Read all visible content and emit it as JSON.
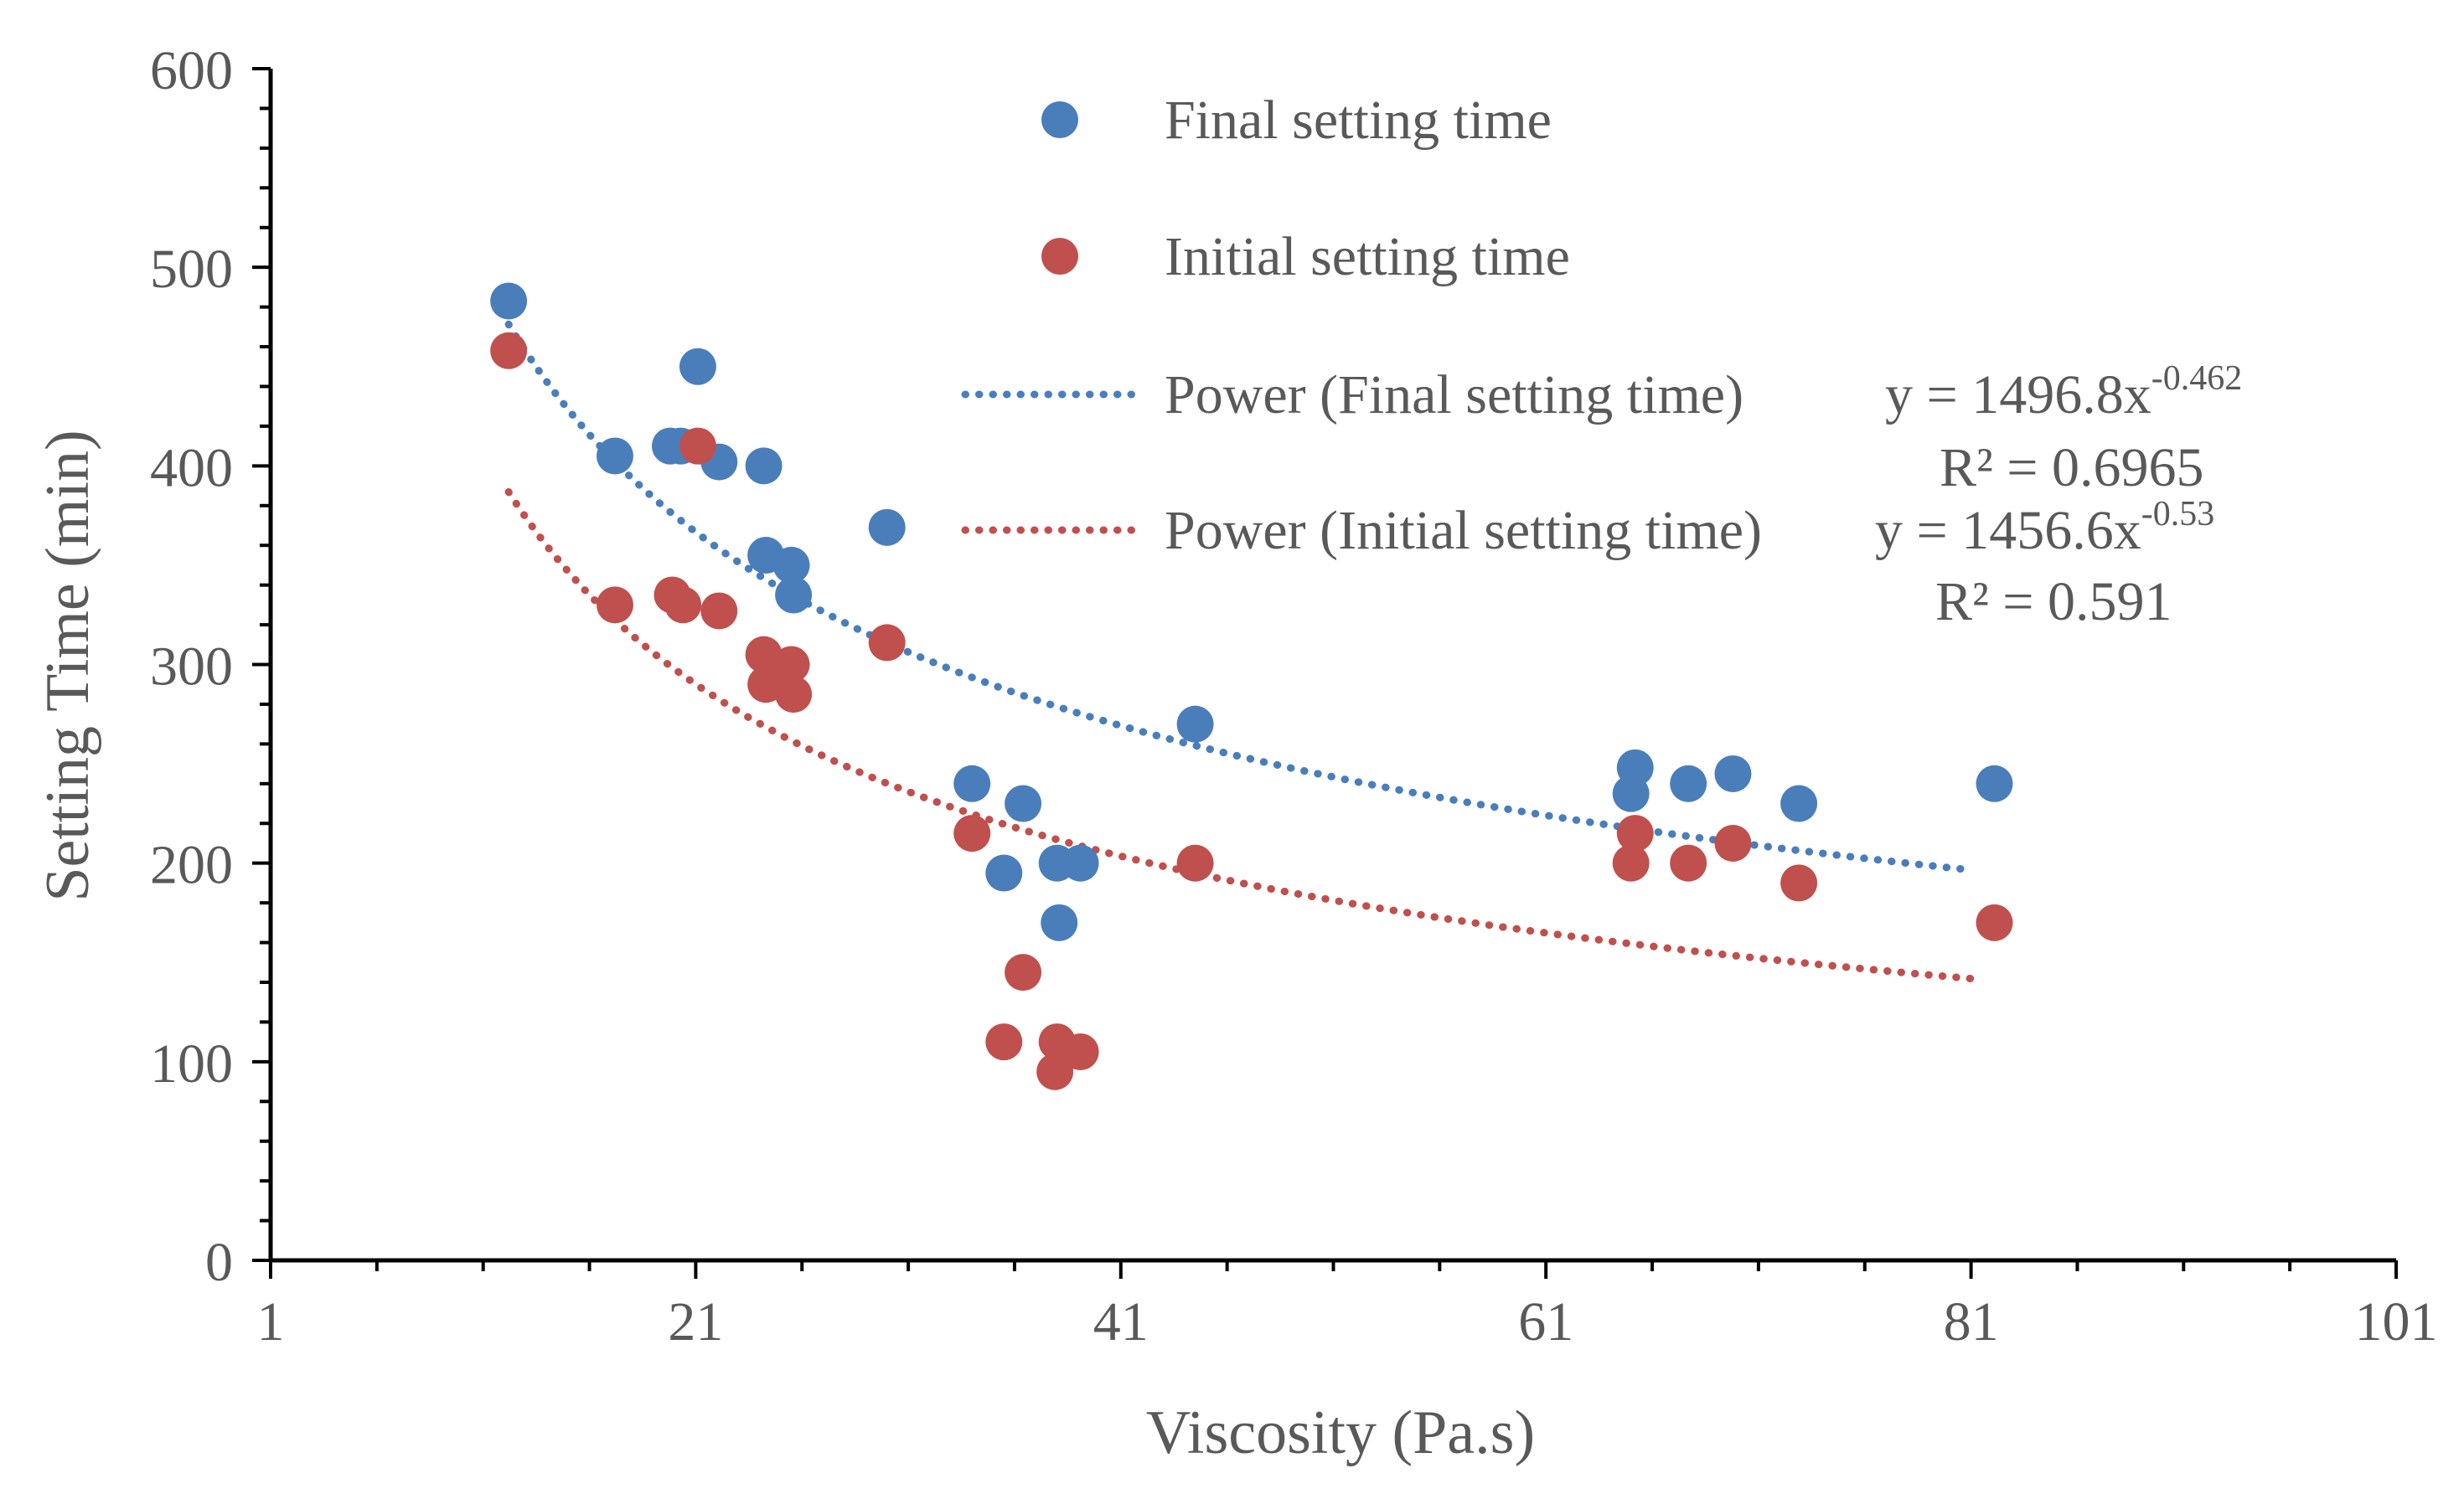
{
  "chart_data": {
    "type": "scatter",
    "title": "",
    "xlabel": "Viscosity (Pa.s)",
    "ylabel": "Setting Time (min)",
    "xlim": [
      1,
      101
    ],
    "ylim": [
      0,
      600
    ],
    "x_ticks": [
      1,
      21,
      41,
      61,
      81,
      101
    ],
    "y_ticks": [
      0,
      100,
      200,
      300,
      400,
      500,
      600
    ],
    "grid": false,
    "legend_position": "top-center",
    "series": [
      {
        "name": "Final setting time",
        "color": "#4a7ebb",
        "points": [
          [
            12.2,
            483
          ],
          [
            17.2,
            405
          ],
          [
            19.8,
            410
          ],
          [
            20.3,
            410
          ],
          [
            21.1,
            450
          ],
          [
            22.1,
            402
          ],
          [
            24.2,
            400
          ],
          [
            24.3,
            355
          ],
          [
            25.5,
            350
          ],
          [
            25.6,
            335
          ],
          [
            30.0,
            369
          ],
          [
            34.0,
            240
          ],
          [
            35.5,
            195
          ],
          [
            36.4,
            230
          ],
          [
            38.0,
            200
          ],
          [
            38.1,
            170
          ],
          [
            39.1,
            200
          ],
          [
            44.5,
            270
          ],
          [
            65.0,
            235
          ],
          [
            65.2,
            248
          ],
          [
            67.7,
            240
          ],
          [
            69.8,
            245
          ],
          [
            72.9,
            230
          ],
          [
            82.1,
            240
          ]
        ]
      },
      {
        "name": "Initial setting time",
        "color": "#c0504d",
        "points": [
          [
            12.2,
            458
          ],
          [
            17.2,
            330
          ],
          [
            19.9,
            335
          ],
          [
            20.4,
            330
          ],
          [
            21.1,
            410
          ],
          [
            22.1,
            327
          ],
          [
            24.2,
            305
          ],
          [
            24.3,
            290
          ],
          [
            25.5,
            300
          ],
          [
            25.6,
            285
          ],
          [
            30.0,
            311
          ],
          [
            34.0,
            215
          ],
          [
            35.5,
            110
          ],
          [
            36.4,
            145
          ],
          [
            37.9,
            95
          ],
          [
            38.0,
            110
          ],
          [
            39.1,
            105
          ],
          [
            44.5,
            200
          ],
          [
            65.0,
            200
          ],
          [
            65.2,
            215
          ],
          [
            67.7,
            200
          ],
          [
            69.8,
            210
          ],
          [
            72.9,
            190
          ],
          [
            82.1,
            170
          ]
        ]
      }
    ],
    "trendlines": [
      {
        "name": "Power (Final setting time)",
        "series": "Final setting time",
        "color": "#4a7ebb",
        "coef": 1496.8,
        "exponent": -0.462,
        "x_range": [
          12.2,
          81.1
        ],
        "equation_prefix": "y = 1496.8x",
        "equation_exponent": "-0.462",
        "r2_text": "R² = 0.6965"
      },
      {
        "name": "Power (Initial setting time)",
        "series": "Initial setting time",
        "color": "#c0504d",
        "coef": 1456.6,
        "exponent": -0.53,
        "x_range": [
          12.2,
          81.1
        ],
        "equation_prefix": "y = 1456.6x",
        "equation_exponent": "-0.53",
        "r2_text": "R² = 0.591"
      }
    ]
  }
}
